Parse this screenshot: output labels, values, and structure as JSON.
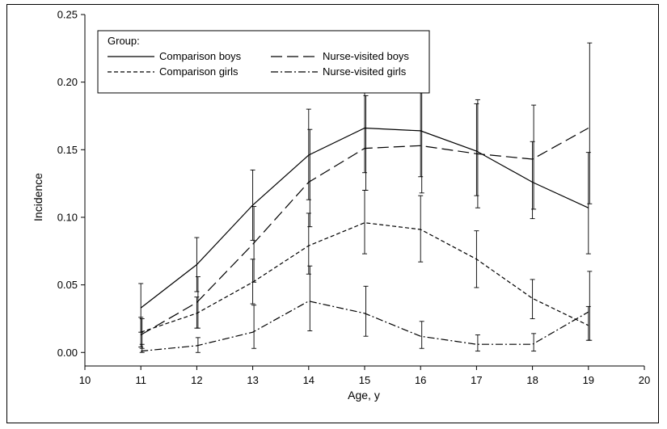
{
  "chart_data": {
    "type": "line",
    "xlabel": "Age, y",
    "ylabel": "Incidence",
    "xlim": [
      10,
      20
    ],
    "ylim": [
      -0.01,
      0.25
    ],
    "xticks": [
      10,
      11,
      12,
      13,
      14,
      15,
      16,
      17,
      18,
      19,
      20
    ],
    "yticks": [
      0.0,
      0.05,
      0.1,
      0.15,
      0.2,
      0.25
    ],
    "ytick_labels": [
      "0.00",
      "0.05",
      "0.10",
      "0.15",
      "0.20",
      "0.25"
    ],
    "legend": {
      "title": "Group:",
      "position": "top-left"
    },
    "x": [
      11,
      12,
      13,
      14,
      15,
      16,
      17,
      18,
      19
    ],
    "series": [
      {
        "name": "Comparison boys",
        "style": "solid",
        "values": [
          0.033,
          0.065,
          0.109,
          0.146,
          0.166,
          0.164,
          0.149,
          0.126,
          0.107
        ],
        "lower": [
          0.015,
          0.045,
          0.083,
          0.113,
          0.133,
          0.13,
          0.116,
          0.099,
          0.073
        ],
        "upper": [
          0.051,
          0.085,
          0.135,
          0.18,
          0.199,
          0.2,
          0.184,
          0.156,
          0.148
        ]
      },
      {
        "name": "Nurse-visited boys",
        "style": "longdash",
        "values": [
          0.013,
          0.037,
          0.08,
          0.126,
          0.151,
          0.153,
          0.147,
          0.143,
          0.166
        ],
        "lower": [
          0.003,
          0.018,
          0.052,
          0.093,
          0.12,
          0.118,
          0.107,
          0.106,
          0.11
        ],
        "upper": [
          0.025,
          0.056,
          0.108,
          0.165,
          0.19,
          0.193,
          0.187,
          0.183,
          0.229
        ]
      },
      {
        "name": "Comparison girls",
        "style": "shortdash",
        "values": [
          0.015,
          0.029,
          0.052,
          0.079,
          0.096,
          0.091,
          0.069,
          0.04,
          0.02
        ],
        "lower": [
          0.004,
          0.018,
          0.036,
          0.058,
          0.073,
          0.067,
          0.048,
          0.025,
          0.009
        ],
        "upper": [
          0.026,
          0.041,
          0.069,
          0.103,
          0.12,
          0.116,
          0.09,
          0.054,
          0.034
        ]
      },
      {
        "name": "Nurse-visited girls",
        "style": "dashdot",
        "values": [
          0.001,
          0.005,
          0.015,
          0.038,
          0.029,
          0.012,
          0.006,
          0.006,
          0.03
        ],
        "lower": [
          0.0,
          0.0,
          0.003,
          0.016,
          0.012,
          0.003,
          0.001,
          0.001,
          0.009
        ],
        "upper": [
          0.006,
          0.011,
          0.035,
          0.064,
          0.049,
          0.023,
          0.013,
          0.014,
          0.06
        ]
      }
    ]
  }
}
